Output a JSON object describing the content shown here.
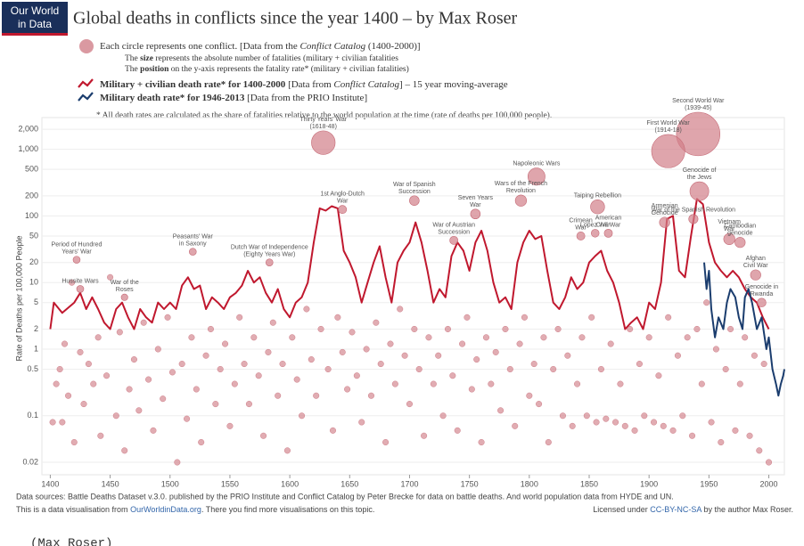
{
  "chart_data": {
    "type": "scatter-line",
    "logo": [
      "Our World",
      "in Data"
    ],
    "title": "Global deaths in conflicts since the year 1400 – by Max Roser",
    "legend": [
      [
        {
          "text": "Each circle represents one conflict. [Data from the "
        },
        {
          "text": "Conflict Catalog",
          "style": "italic"
        },
        {
          "text": " (1400-2000)]"
        }
      ],
      [
        {
          "text": "The "
        },
        {
          "text": "size",
          "style": "bold"
        },
        {
          "text": " represents the absolute number of fatalities (military + civilian fatalities"
        }
      ],
      [
        {
          "text": "The "
        },
        {
          "text": "position",
          "style": "bold"
        },
        {
          "text": " on the y-axis represents the fatality rate* (military + civilian fatalities)"
        }
      ]
    ],
    "footnote": "* All death rates are calculated as the share of fatalities relative to the world population at the time (rate of deaths per 100,000 people).",
    "ylabel": "Rate of Deaths per 100,000 People",
    "xlim": [
      1393,
      2013
    ],
    "ylim": [
      0.013,
      3000
    ],
    "log_y": true,
    "xticks": [
      1400,
      1450,
      1500,
      1550,
      1600,
      1650,
      1700,
      1750,
      1800,
      1850,
      1900,
      1950,
      2000
    ],
    "yticks": [
      0.02,
      0.1,
      0.5,
      1,
      2,
      5,
      10,
      20,
      50,
      100,
      200,
      500,
      {
        "value": 1000,
        "label": "1,000"
      },
      {
        "value": 2000,
        "label": "2,000"
      }
    ],
    "conflict_color": "#d17f89",
    "conflicts": {
      "x": [
        1402,
        1405,
        1408,
        1410,
        1412,
        1415,
        1418,
        1420,
        1425,
        1428,
        1432,
        1436,
        1440,
        1442,
        1447,
        1450,
        1455,
        1458,
        1462,
        1466,
        1470,
        1474,
        1478,
        1482,
        1486,
        1490,
        1494,
        1498,
        1502,
        1506,
        1510,
        1514,
        1518,
        1522,
        1526,
        1530,
        1534,
        1538,
        1542,
        1546,
        1550,
        1554,
        1558,
        1562,
        1566,
        1570,
        1574,
        1578,
        1582,
        1586,
        1590,
        1594,
        1598,
        1602,
        1606,
        1610,
        1614,
        1618,
        1622,
        1626,
        1632,
        1636,
        1640,
        1644,
        1648,
        1652,
        1656,
        1660,
        1664,
        1668,
        1672,
        1676,
        1680,
        1684,
        1688,
        1692,
        1696,
        1700,
        1704,
        1708,
        1712,
        1716,
        1720,
        1724,
        1728,
        1732,
        1736,
        1740,
        1744,
        1748,
        1752,
        1756,
        1760,
        1764,
        1768,
        1772,
        1776,
        1780,
        1784,
        1788,
        1792,
        1796,
        1800,
        1804,
        1808,
        1812,
        1816,
        1820,
        1824,
        1828,
        1832,
        1836,
        1840,
        1844,
        1848,
        1852,
        1856,
        1860,
        1864,
        1868,
        1872,
        1876,
        1880,
        1884,
        1888,
        1892,
        1896,
        1900,
        1904,
        1908,
        1912,
        1916,
        1920,
        1924,
        1928,
        1932,
        1936,
        1940,
        1944,
        1948,
        1952,
        1956,
        1960,
        1964,
        1968,
        1972,
        1976,
        1980,
        1984,
        1988,
        1992,
        1996,
        2000
      ],
      "values": [
        0.08,
        0.3,
        0.5,
        0.08,
        1.2,
        0.2,
        10,
        0.04,
        0.9,
        0.15,
        0.6,
        0.3,
        1.5,
        0.05,
        0.4,
        12,
        0.1,
        1.8,
        0.03,
        0.25,
        0.7,
        0.12,
        2.5,
        0.35,
        0.06,
        1,
        0.18,
        3,
        0.45,
        0.02,
        0.6,
        0.09,
        1.5,
        0.25,
        0.04,
        0.8,
        2,
        0.15,
        0.5,
        1.2,
        0.07,
        0.3,
        3,
        0.6,
        0.15,
        1.5,
        0.4,
        0.05,
        0.9,
        2.5,
        0.2,
        0.6,
        0.03,
        1.5,
        0.35,
        0.1,
        4,
        0.7,
        0.2,
        2,
        0.5,
        0.06,
        3,
        0.9,
        0.25,
        1.8,
        0.4,
        0.08,
        1,
        0.2,
        2.5,
        0.6,
        0.04,
        1.2,
        0.3,
        4,
        0.8,
        0.15,
        2,
        0.5,
        0.05,
        1.5,
        0.3,
        0.8,
        0.1,
        2,
        0.4,
        0.06,
        1.2,
        3,
        0.25,
        0.7,
        0.04,
        1.5,
        0.3,
        0.9,
        0.12,
        2,
        0.5,
        0.07,
        1.2,
        3,
        0.2,
        0.6,
        0.15,
        1.5,
        0.04,
        0.5,
        2,
        0.1,
        0.8,
        0.07,
        0.3,
        1.5,
        0.1,
        3,
        0.08,
        0.5,
        0.09,
        1.2,
        0.08,
        0.3,
        0.07,
        2,
        0.06,
        0.6,
        0.1,
        1.5,
        0.08,
        0.4,
        0.07,
        3,
        0.06,
        0.8,
        0.1,
        1.5,
        0.05,
        2,
        0.3,
        5,
        0.08,
        1,
        0.04,
        0.5,
        2,
        0.06,
        0.3,
        1.5,
        0.05,
        0.8,
        0.03,
        0.6,
        0.02
      ]
    },
    "labelled_conflicts": [
      {
        "name": [
          "Thirty Years' War",
          "(1618-48)"
        ],
        "x": 1628,
        "value": 1260,
        "size": 16
      },
      {
        "name": [
          "Second World War",
          "(1939-45)"
        ],
        "x": 1941,
        "value": 1700,
        "size": 66
      },
      {
        "name": [
          "First World War",
          "(1914-18)"
        ],
        "x": 1916,
        "value": 940,
        "size": 36
      },
      {
        "name": [
          "Napoleonic Wars"
        ],
        "x": 1806,
        "value": 390,
        "size": 7
      },
      {
        "name": [
          "Genocide of",
          "the Jews"
        ],
        "x": 1942,
        "value": 235,
        "size": 9
      },
      {
        "name": [
          "Taiping Rebellion"
        ],
        "x": 1857,
        "value": 137,
        "size": 4
      },
      {
        "name": [
          "Armenian",
          "Genocide"
        ],
        "x": 1913,
        "value": 80,
        "size": 1.5
      },
      {
        "name": [
          "War of Spanish",
          "Succession"
        ],
        "x": 1704,
        "value": 170,
        "size": 1.2
      },
      {
        "name": [
          "Wars of the French",
          "Revolution"
        ],
        "x": 1793,
        "value": 170,
        "size": 2
      },
      {
        "name": [
          "Seven Years",
          "War"
        ],
        "x": 1755,
        "value": 107,
        "size": 1.2
      },
      {
        "name": [
          "1st Anglo-Dutch",
          "War"
        ],
        "x": 1644,
        "value": 125,
        "size": 0.6
      },
      {
        "name": [
          "War of Austrian",
          "Succession"
        ],
        "x": 1737,
        "value": 43,
        "size": 0.6
      },
      {
        "name": [
          "Lopez War"
        ],
        "x": 1855,
        "value": 55,
        "size": 0.5
      },
      {
        "name": [
          "Crimean",
          "War"
        ],
        "x": 1843,
        "value": 50,
        "size": 0.6
      },
      {
        "name": [
          "American",
          "Civil War"
        ],
        "x": 1866,
        "value": 55,
        "size": 0.6
      },
      {
        "name": [
          "War of the Spanish Revolution"
        ],
        "x": 1937,
        "value": 90,
        "size": 1
      },
      {
        "name": [
          "Vietnam",
          "War"
        ],
        "x": 1967,
        "value": 45,
        "size": 2
      },
      {
        "name": [
          "Cambodian",
          "genocide"
        ],
        "x": 1976,
        "value": 40,
        "size": 1.5
      },
      {
        "name": [
          "Afghan",
          "Civil War"
        ],
        "x": 1989,
        "value": 13,
        "size": 1.5
      },
      {
        "name": [
          "Genocide in",
          "Rwanda"
        ],
        "x": 1994,
        "value": 5,
        "size": 0.8
      },
      {
        "name": [
          "Peasants' War",
          "in Saxony"
        ],
        "x": 1519,
        "value": 29,
        "size": 0.3
      },
      {
        "name": [
          "Dutch War of Independence",
          "(Eighty Years War)"
        ],
        "x": 1583,
        "value": 20,
        "size": 0.3
      },
      {
        "name": [
          "Period of Hundred",
          "Years' War"
        ],
        "x": 1422,
        "value": 22,
        "size": 0.3
      },
      {
        "name": [
          "Hussite Wars"
        ],
        "x": 1425,
        "value": 8,
        "size": 0.3
      },
      {
        "name": [
          "War of the",
          "Roses"
        ],
        "x": 1462,
        "value": 6,
        "size": 0.2
      }
    ],
    "series": [
      {
        "name": [
          {
            "text": "Military + civilian death rate* for 1400-2000",
            "style": "bold"
          },
          {
            "text": " [Data from "
          },
          {
            "text": "Conflict Catalog",
            "style": "italic"
          },
          {
            "text": "] – 15 year moving-average"
          }
        ],
        "color": "#c0182e",
        "x": [
          1400,
          1403,
          1410,
          1420,
          1425,
          1430,
          1435,
          1440,
          1445,
          1450,
          1455,
          1460,
          1465,
          1470,
          1475,
          1480,
          1485,
          1490,
          1495,
          1500,
          1505,
          1510,
          1515,
          1520,
          1525,
          1530,
          1535,
          1540,
          1545,
          1550,
          1555,
          1560,
          1565,
          1570,
          1575,
          1580,
          1585,
          1590,
          1595,
          1600,
          1605,
          1610,
          1615,
          1620,
          1625,
          1630,
          1635,
          1640,
          1645,
          1650,
          1655,
          1660,
          1665,
          1670,
          1675,
          1680,
          1685,
          1690,
          1695,
          1700,
          1705,
          1710,
          1715,
          1720,
          1725,
          1730,
          1735,
          1740,
          1745,
          1750,
          1755,
          1760,
          1765,
          1770,
          1775,
          1780,
          1785,
          1790,
          1795,
          1800,
          1805,
          1810,
          1815,
          1820,
          1825,
          1830,
          1835,
          1840,
          1845,
          1850,
          1855,
          1860,
          1865,
          1870,
          1875,
          1880,
          1885,
          1890,
          1895,
          1900,
          1905,
          1910,
          1915,
          1920,
          1925,
          1930,
          1935,
          1940,
          1945,
          1950,
          1955,
          1960,
          1965,
          1970,
          1975,
          1980,
          1985,
          1990,
          1995,
          2000
        ],
        "values": [
          2,
          5,
          3.5,
          5,
          7,
          4,
          6,
          4,
          2.5,
          2,
          4,
          5,
          3,
          2,
          4,
          3,
          2.5,
          5,
          4,
          5,
          4,
          9,
          12,
          8,
          9,
          4,
          6,
          5,
          4,
          6,
          7,
          9,
          15,
          10,
          12,
          7,
          5,
          8,
          4,
          3,
          5,
          6,
          10,
          40,
          130,
          120,
          140,
          130,
          30,
          20,
          12,
          5,
          10,
          20,
          35,
          12,
          5,
          20,
          30,
          40,
          80,
          40,
          15,
          5,
          8,
          6,
          25,
          40,
          30,
          15,
          40,
          60,
          30,
          10,
          5,
          6,
          4,
          20,
          40,
          60,
          45,
          50,
          15,
          5,
          4,
          6,
          12,
          8,
          10,
          20,
          25,
          30,
          15,
          10,
          5,
          2,
          2.5,
          3,
          2,
          5,
          4,
          10,
          90,
          100,
          15,
          12,
          50,
          180,
          150,
          40,
          20,
          15,
          12,
          15,
          12,
          8,
          6,
          5,
          3,
          2
        ]
      },
      {
        "name": [
          {
            "text": "Military death rate* for 1946-2013",
            "style": "bold"
          },
          {
            "text": " [Data from the PRIO Institute]"
          }
        ],
        "color": "#1b3d6e",
        "x": [
          1946,
          1948,
          1950,
          1952,
          1955,
          1958,
          1962,
          1965,
          1968,
          1972,
          1975,
          1978,
          1980,
          1983,
          1986,
          1990,
          1994,
          1998,
          2000,
          2003,
          2006,
          2008,
          2010,
          2012,
          2013
        ],
        "values": [
          20,
          8,
          15,
          4,
          1.5,
          3,
          2,
          5,
          8,
          6,
          3,
          2,
          6,
          8,
          5,
          2,
          3,
          1,
          1.5,
          0.5,
          0.3,
          0.2,
          0.3,
          0.4,
          0.5
        ]
      }
    ],
    "source": "Data sources: Battle Deaths Dataset v.3.0. published by the PRIO Institute and Conflict Catalog by Peter Brecke for data on battle deaths. And world population data from HYDE and UN.",
    "credit": [
      {
        "text": "This is a data visualisation from "
      },
      {
        "text": "OurWorldinData.org",
        "style": "link"
      },
      {
        "text": ". There you find more visualisations on this topic."
      }
    ],
    "license": [
      {
        "text": "Licensed under "
      },
      {
        "text": "CC-BY-NC-SA",
        "style": "link"
      },
      {
        "text": " by the author Max Roser."
      }
    ],
    "caption": "(Max Roser)"
  }
}
